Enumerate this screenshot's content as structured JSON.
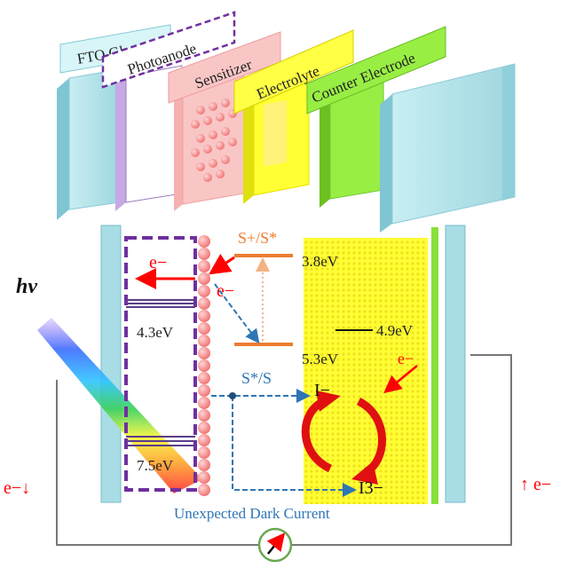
{
  "layers": {
    "fto_glass": "FTO Glass",
    "photoanode": "Photoanode",
    "sensitizer": "Sensitizer",
    "electrolyte": "Electrolyte",
    "counter_electrode": "Counter Electrode"
  },
  "labels": {
    "hv": "hv",
    "electron": "e−",
    "cb_energy": "4.3eV",
    "vb_energy": "7.5eV",
    "excited_state": "S+/S*",
    "lumo_energy": "3.8eV",
    "homo_energy": "5.3eV",
    "redox_energy": "4.9eV",
    "ground_state": "S*/S",
    "iodide": "I−",
    "triiodide": "I3−",
    "dark_current": "Unexpected Dark Current",
    "electron_down": "e−↓",
    "electron_up": "↑ e−"
  },
  "colors": {
    "fto": "#a8dde6",
    "photoanode_border": "#7030a0",
    "sensitizer": "#f4a0a0",
    "electrolyte": "#ffff33",
    "counter_electrode": "#88e03a",
    "level_orange": "#ed7d31",
    "arrow_blue": "#2e75b6",
    "electron_red": "#ff0000"
  }
}
